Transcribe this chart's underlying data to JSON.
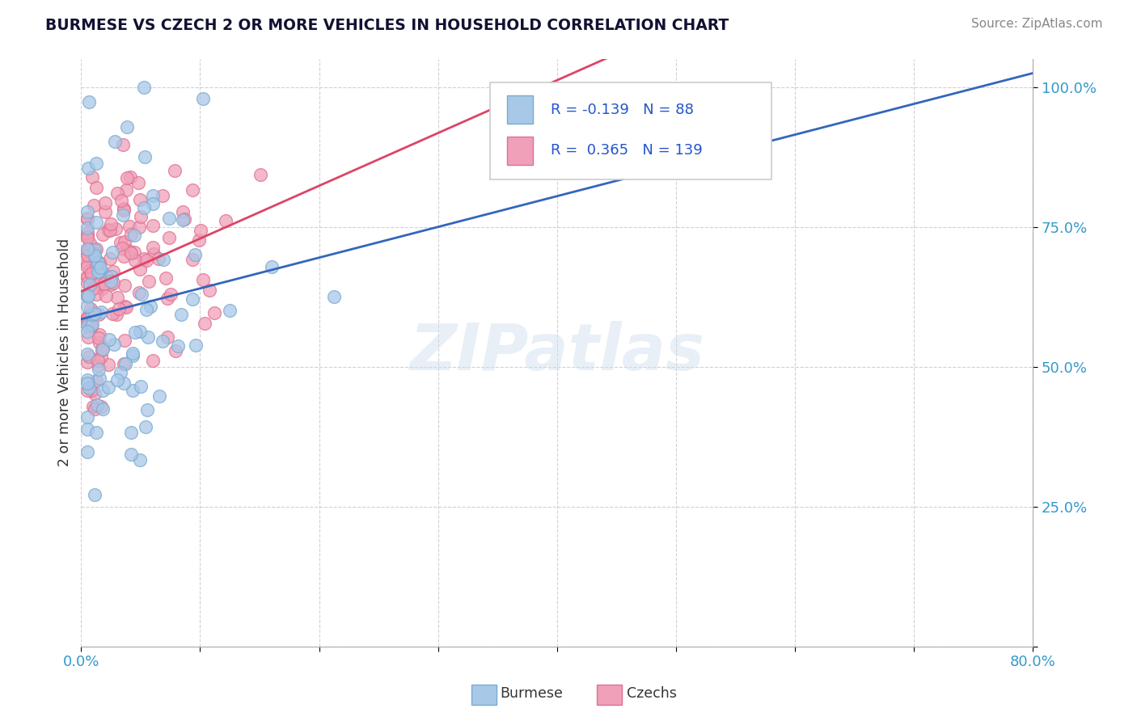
{
  "title": "BURMESE VS CZECH 2 OR MORE VEHICLES IN HOUSEHOLD CORRELATION CHART",
  "source_text": "Source: ZipAtlas.com",
  "ylabel": "2 or more Vehicles in Household",
  "ytick_labels": [
    "",
    "25.0%",
    "50.0%",
    "75.0%",
    "100.0%"
  ],
  "ytick_values": [
    0,
    0.25,
    0.5,
    0.75,
    1.0
  ],
  "xmin": 0.0,
  "xmax": 0.8,
  "ymin": 0.0,
  "ymax": 1.05,
  "burmese_color": "#a8c8e8",
  "burmese_edge": "#7aaad0",
  "czech_color": "#f0a0b8",
  "czech_edge": "#e07090",
  "burmese_line_color": "#3366bb",
  "czech_line_color": "#dd4466",
  "burmese_R": -0.139,
  "burmese_N": 88,
  "czech_R": 0.365,
  "czech_N": 139,
  "watermark": "ZIPatlas",
  "legend_R_color": "#2255cc",
  "legend_box_edge": "#cccccc",
  "title_color": "#111133",
  "source_color": "#888888",
  "ylabel_color": "#333333",
  "tick_color": "#3399cc",
  "grid_color": "#cccccc"
}
